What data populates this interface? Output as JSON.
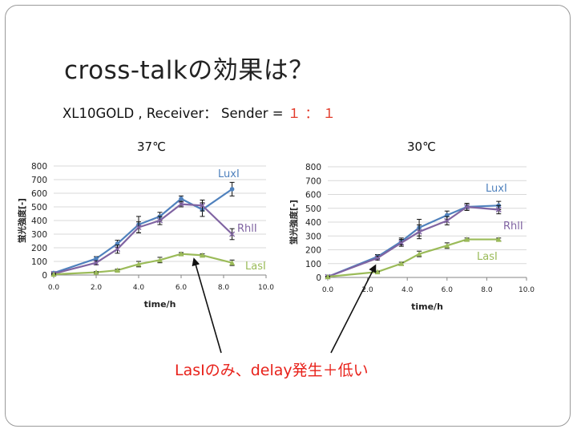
{
  "title": "cross-talkの効果は？",
  "subtitle": {
    "prefix": "XL10GOLD , Receiver：  Sender = ",
    "ratio": "１ ： １"
  },
  "callout": "LasIのみ、delay発生＋低い",
  "colors": {
    "lux": "#4f81bd",
    "rhl": "#8064a2",
    "las": "#9bbb59",
    "callout": "#e8211a"
  },
  "chart_data": [
    {
      "type": "line",
      "title": "37℃",
      "xlabel": "time/h",
      "ylabel": "蛍光強度[-]",
      "xlim": [
        0,
        10
      ],
      "ylim": [
        0,
        800
      ],
      "xticks": [
        "0.0",
        "2.0",
        "4.0",
        "6.0",
        "8.0",
        "10.0"
      ],
      "yticks": [
        "0",
        "100",
        "200",
        "300",
        "400",
        "500",
        "600",
        "700",
        "800"
      ],
      "grid": true,
      "series": [
        {
          "name": "LuxI",
          "color": "#4f81bd",
          "x": [
            0,
            2,
            3,
            4,
            5,
            6,
            7,
            8.4
          ],
          "y": [
            15,
            120,
            230,
            370,
            430,
            560,
            480,
            630
          ],
          "err": [
            5,
            15,
            25,
            60,
            30,
            20,
            50,
            50
          ]
        },
        {
          "name": "RhlI",
          "color": "#8064a2",
          "x": [
            0,
            2,
            3,
            4,
            5,
            6,
            7,
            8.4
          ],
          "y": [
            10,
            90,
            190,
            350,
            400,
            520,
            510,
            300
          ],
          "err": [
            5,
            15,
            30,
            40,
            30,
            20,
            40,
            40
          ]
        },
        {
          "name": "LasI",
          "color": "#9bbb59",
          "x": [
            0,
            2,
            3,
            4,
            5,
            6,
            7,
            8.4
          ],
          "y": [
            5,
            20,
            35,
            80,
            110,
            155,
            145,
            90
          ],
          "err": [
            3,
            5,
            8,
            20,
            20,
            10,
            10,
            20
          ]
        }
      ],
      "labels": {
        "lux": "LuxI",
        "rhl": "RhlI",
        "las": "LasI"
      }
    },
    {
      "type": "line",
      "title": "30℃",
      "xlabel": "time/h",
      "ylabel": "蛍光強度[-]",
      "xlim": [
        0,
        10
      ],
      "ylim": [
        0,
        800
      ],
      "xticks": [
        "0.0",
        "2.0",
        "4.0",
        "6.0",
        "8.0",
        "10.0"
      ],
      "yticks": [
        "0",
        "100",
        "200",
        "300",
        "400",
        "500",
        "600",
        "700",
        "800"
      ],
      "grid": true,
      "series": [
        {
          "name": "LuxI",
          "color": "#4f81bd",
          "x": [
            0,
            2.5,
            3.7,
            4.6,
            6,
            7,
            8.6
          ],
          "y": [
            5,
            150,
            260,
            360,
            450,
            510,
            520
          ],
          "err": [
            3,
            15,
            25,
            60,
            30,
            25,
            30
          ]
        },
        {
          "name": "RhlI",
          "color": "#8064a2",
          "x": [
            0,
            2.5,
            3.7,
            4.6,
            6,
            7,
            8.6
          ],
          "y": [
            5,
            140,
            250,
            330,
            410,
            510,
            490
          ],
          "err": [
            3,
            15,
            25,
            50,
            30,
            25,
            30
          ]
        },
        {
          "name": "LasI",
          "color": "#9bbb59",
          "x": [
            0,
            2.5,
            3.7,
            4.6,
            6,
            7,
            8.6
          ],
          "y": [
            5,
            40,
            100,
            170,
            230,
            275,
            275
          ],
          "err": [
            3,
            5,
            10,
            20,
            20,
            10,
            10
          ]
        }
      ],
      "labels": {
        "lux": "LuxI",
        "rhl": "RhlI",
        "las": "LasI"
      }
    }
  ]
}
